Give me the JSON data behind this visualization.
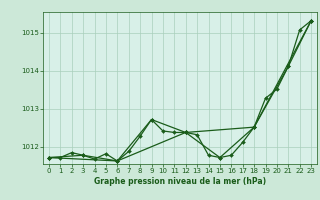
{
  "bg_color": "#cce8d8",
  "plot_bg_color": "#d8f0e8",
  "grid_color": "#aacfbc",
  "line_color": "#1a5c1a",
  "text_color": "#1a5c1a",
  "xlabel": "Graphe pression niveau de la mer (hPa)",
  "xlim": [
    -0.5,
    23.5
  ],
  "ylim": [
    1011.55,
    1015.55
  ],
  "yticks": [
    1012,
    1013,
    1014,
    1015
  ],
  "xticks": [
    0,
    1,
    2,
    3,
    4,
    5,
    6,
    7,
    8,
    9,
    10,
    11,
    12,
    13,
    14,
    15,
    16,
    17,
    18,
    19,
    20,
    21,
    22,
    23
  ],
  "series1": {
    "x": [
      0,
      1,
      2,
      3,
      4,
      5,
      6,
      7,
      8,
      9,
      10,
      11,
      12,
      13,
      14,
      15,
      16,
      17,
      18,
      19,
      20,
      21,
      22,
      23
    ],
    "y": [
      1011.72,
      1011.72,
      1011.85,
      1011.78,
      1011.68,
      1011.82,
      1011.63,
      1011.88,
      1012.28,
      1012.72,
      1012.42,
      1012.38,
      1012.38,
      1012.32,
      1011.78,
      1011.72,
      1011.78,
      1012.12,
      1012.52,
      1013.28,
      1013.52,
      1014.12,
      1015.08,
      1015.32
    ]
  },
  "series2": {
    "x": [
      0,
      3,
      6,
      9,
      12,
      15,
      18,
      21,
      23
    ],
    "y": [
      1011.72,
      1011.78,
      1011.63,
      1012.72,
      1012.38,
      1011.72,
      1012.52,
      1014.12,
      1015.32
    ]
  },
  "series3": {
    "x": [
      0,
      6,
      12,
      18,
      23
    ],
    "y": [
      1011.72,
      1011.63,
      1012.38,
      1012.52,
      1015.32
    ]
  },
  "marker": "D",
  "markersize": 2.0,
  "linewidth": 0.9,
  "tick_fontsize": 5.0,
  "xlabel_fontsize": 5.5
}
